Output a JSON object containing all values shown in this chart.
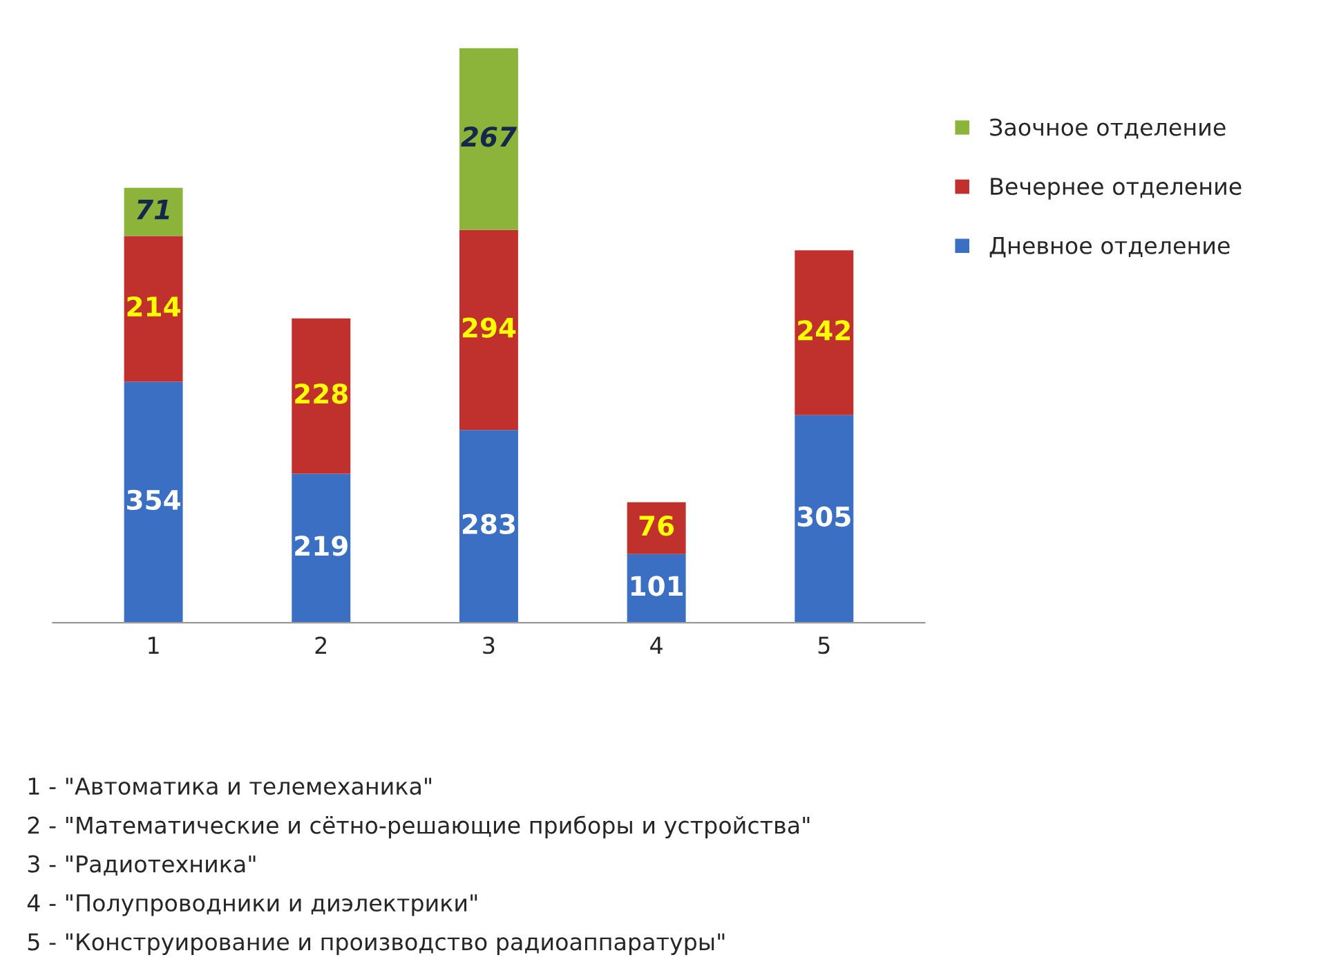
{
  "chart_data": {
    "type": "bar",
    "stacked": true,
    "data_labels": true,
    "legend": "right",
    "grid": false,
    "categories": [
      "1",
      "2",
      "3",
      "4",
      "5"
    ],
    "series": [
      {
        "name": "Дневное отделение",
        "color": "#3a6fc4",
        "values": [
          354,
          219,
          283,
          101,
          305
        ]
      },
      {
        "name": "Вечернее отделение",
        "color": "#c0302c",
        "values": [
          214,
          228,
          294,
          76,
          242
        ]
      },
      {
        "name": "Заочное отделение",
        "color": "#8cb43a",
        "values": [
          71,
          null,
          267,
          null,
          null
        ]
      }
    ],
    "annotations": [
      "1 - \"Автоматика и телемеханика\"",
      "2 - \"Математические и сётно-решающие приборы и устройства\"",
      "3 - \"Радиотехника\"",
      "4 - \"Полупроводники и диэлектрики\"",
      "5 - \"Конструирование и производство радиоаппаратуры\""
    ]
  }
}
